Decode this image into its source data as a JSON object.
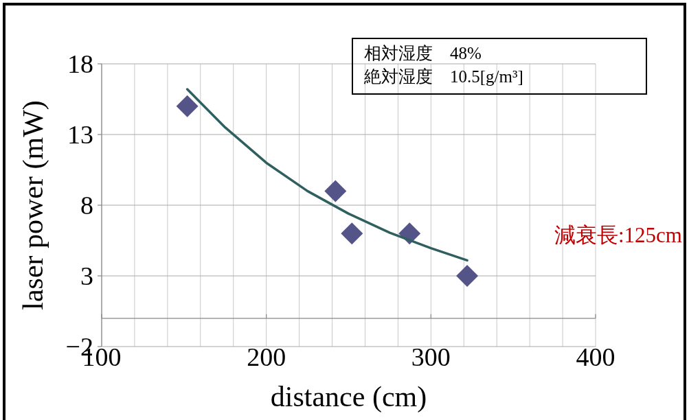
{
  "chart_data": {
    "type": "scatter",
    "xlabel": "distance (cm)",
    "ylabel": "laser power (mW)",
    "xlim": [
      100,
      400
    ],
    "ylim": [
      -2,
      18
    ],
    "xticks": [
      100,
      {
        "value": 120,
        "label": null
      },
      {
        "value": 140,
        "label": null
      },
      {
        "value": 160,
        "label": null
      },
      {
        "value": 180,
        "label": null
      },
      200,
      {
        "value": 220,
        "label": null
      },
      {
        "value": 240,
        "label": null
      },
      {
        "value": 260,
        "label": null
      },
      {
        "value": 280,
        "label": null
      },
      300,
      {
        "value": 320,
        "label": null
      },
      {
        "value": 340,
        "label": null
      },
      {
        "value": 360,
        "label": null
      },
      {
        "value": 380,
        "label": null
      },
      400
    ],
    "yticks": [
      -2,
      3,
      8,
      13,
      18
    ],
    "grid": true,
    "marker": "diamond",
    "series": [
      {
        "type": "scatter",
        "color": "#545488",
        "x": [
          152,
          242,
          252,
          287,
          322
        ],
        "values": [
          15,
          9,
          6,
          6,
          3
        ]
      },
      {
        "type": "line",
        "color": "#2f5f5f",
        "marker": "none",
        "line_style": "solid",
        "x": [
          152,
          175,
          200,
          225,
          250,
          275,
          300,
          322
        ],
        "values": [
          16.2,
          13.5,
          11.0,
          9.0,
          7.4,
          6.05,
          4.96,
          4.1
        ]
      }
    ],
    "annotations": [
      "相対湿度　48%",
      "絶対湿度　10.5[g/m³]",
      "減衰長:125cm"
    ]
  }
}
